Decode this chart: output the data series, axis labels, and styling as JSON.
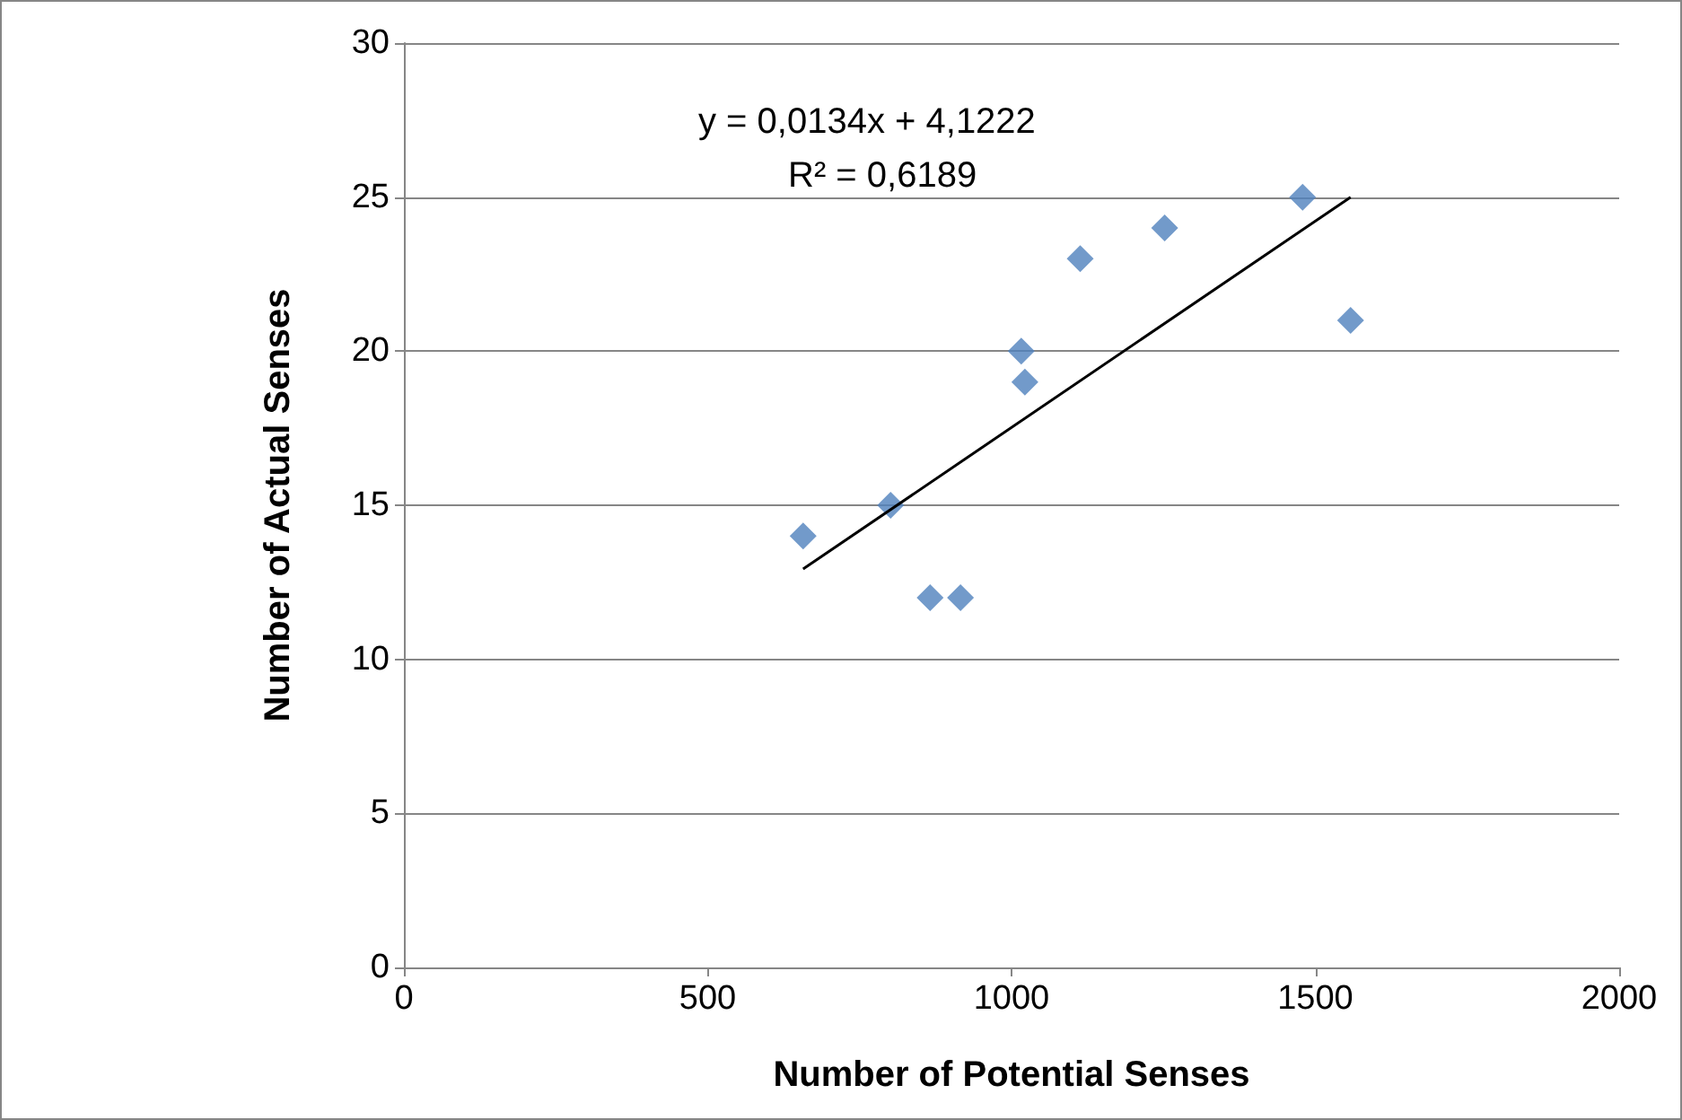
{
  "chart_data": {
    "type": "scatter",
    "xlabel": "Number of Potential Senses",
    "ylabel": "Number of Actual Senses",
    "annotations": [
      "y = 0,0134x + 4,1222",
      "R² = 0,6189"
    ],
    "series": [
      {
        "color": "#4f81bd",
        "x": [
          657,
          801,
          866,
          916,
          1016,
          1022,
          1113,
          1252,
          1479,
          1558
        ],
        "values": [
          14,
          15,
          12,
          12,
          20,
          19,
          23,
          24,
          25,
          21
        ]
      },
      {
        "type": "line",
        "marker": "none",
        "color": "#000000",
        "x": [
          657,
          1558
        ],
        "values": [
          12.93,
          25.0
        ]
      }
    ],
    "xlim": [
      0,
      2000
    ],
    "xticks": [
      0,
      500,
      1000,
      1500,
      2000
    ],
    "ylim": [
      0,
      30
    ],
    "yticks": [
      0,
      5,
      10,
      15,
      20,
      25,
      30
    ],
    "grid": "y",
    "marker": "diamond"
  }
}
